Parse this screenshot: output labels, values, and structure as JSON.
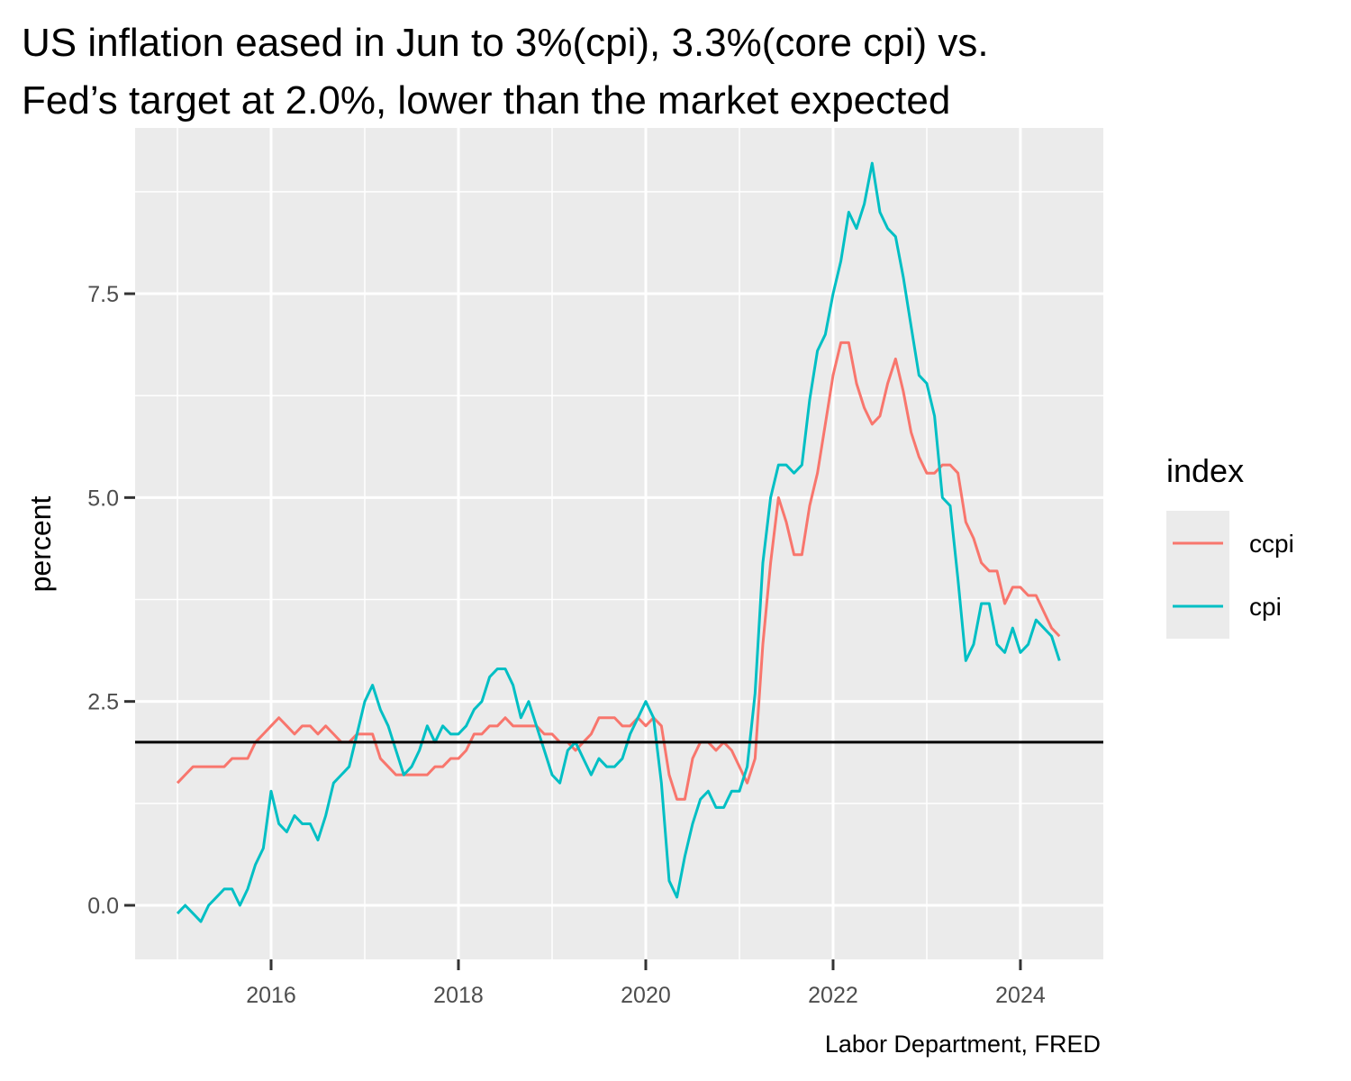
{
  "chart_data": {
    "type": "line",
    "title": [
      "US inflation eased in Jun to 3%(cpi), 3.3%(core cpi) vs.",
      "Fed’s target at 2.0%, lower than the market expected"
    ],
    "y_label": "percent",
    "caption": "Labor Department, FRED",
    "legend_title": "index",
    "legend": "right",
    "grid": true,
    "hline": 2,
    "hline_color": "#000000",
    "xlim": [
      2014.548,
      2024.885
    ],
    "xticks": [
      2016,
      2018,
      2020,
      2022,
      2024
    ],
    "xminor": [
      2015,
      2017,
      2019,
      2021,
      2023
    ],
    "ylim": [
      -0.663,
      9.533
    ],
    "yticks": [
      {
        "value": 0,
        "label": "0.0"
      },
      2.5,
      {
        "value": 5,
        "label": "5.0"
      },
      7.5
    ],
    "yminor": [
      1.25,
      3.75,
      6.25,
      8.75
    ],
    "x": [
      2015,
      2015.083,
      2015.167,
      2015.25,
      2015.333,
      2015.417,
      2015.5,
      2015.583,
      2015.667,
      2015.75,
      2015.833,
      2015.917,
      2016,
      2016.083,
      2016.167,
      2016.25,
      2016.333,
      2016.417,
      2016.5,
      2016.583,
      2016.667,
      2016.75,
      2016.833,
      2016.917,
      2017,
      2017.083,
      2017.167,
      2017.25,
      2017.333,
      2017.417,
      2017.5,
      2017.583,
      2017.667,
      2017.75,
      2017.833,
      2017.917,
      2018,
      2018.083,
      2018.167,
      2018.25,
      2018.333,
      2018.417,
      2018.5,
      2018.583,
      2018.667,
      2018.75,
      2018.833,
      2018.917,
      2019,
      2019.083,
      2019.167,
      2019.25,
      2019.333,
      2019.417,
      2019.5,
      2019.583,
      2019.667,
      2019.75,
      2019.833,
      2019.917,
      2020,
      2020.083,
      2020.167,
      2020.25,
      2020.333,
      2020.417,
      2020.5,
      2020.583,
      2020.667,
      2020.75,
      2020.833,
      2020.917,
      2021,
      2021.083,
      2021.167,
      2021.25,
      2021.333,
      2021.417,
      2021.5,
      2021.583,
      2021.667,
      2021.75,
      2021.833,
      2021.917,
      2022,
      2022.083,
      2022.167,
      2022.25,
      2022.333,
      2022.417,
      2022.5,
      2022.583,
      2022.667,
      2022.75,
      2022.833,
      2022.917,
      2023,
      2023.083,
      2023.167,
      2023.25,
      2023.333,
      2023.417,
      2023.5,
      2023.583,
      2023.667,
      2023.75,
      2023.833,
      2023.917,
      2024,
      2024.083,
      2024.167,
      2024.25,
      2024.333,
      2024.417
    ],
    "series": [
      {
        "name": "ccpi",
        "color": "#F8766D",
        "values": [
          1.5,
          1.6,
          1.7,
          1.7,
          1.7,
          1.7,
          1.7,
          1.8,
          1.8,
          1.8,
          2.0,
          2.1,
          2.2,
          2.3,
          2.2,
          2.1,
          2.2,
          2.2,
          2.1,
          2.2,
          2.1,
          2.0,
          2.0,
          2.1,
          2.1,
          2.1,
          1.8,
          1.7,
          1.6,
          1.6,
          1.6,
          1.6,
          1.6,
          1.7,
          1.7,
          1.8,
          1.8,
          1.9,
          2.1,
          2.1,
          2.2,
          2.2,
          2.3,
          2.2,
          2.2,
          2.2,
          2.2,
          2.1,
          2.1,
          2.0,
          2.0,
          1.9,
          2.0,
          2.1,
          2.3,
          2.3,
          2.3,
          2.2,
          2.2,
          2.3,
          2.2,
          2.3,
          2.2,
          1.6,
          1.3,
          1.3,
          1.8,
          2.0,
          2.0,
          1.9,
          2.0,
          1.9,
          1.7,
          1.5,
          1.8,
          3.2,
          4.2,
          5.0,
          4.7,
          4.3,
          4.3,
          4.9,
          5.3,
          5.9,
          6.5,
          6.9,
          6.9,
          6.4,
          6.1,
          5.9,
          6.0,
          6.4,
          6.7,
          6.3,
          5.8,
          5.5,
          5.3,
          5.3,
          5.4,
          5.4,
          5.3,
          4.7,
          4.5,
          4.2,
          4.1,
          4.1,
          3.7,
          3.9,
          3.9,
          3.8,
          3.8,
          3.6,
          3.4,
          3.3
        ]
      },
      {
        "name": "cpi",
        "color": "#00BFC4",
        "values": [
          -0.1,
          0.0,
          -0.1,
          -0.2,
          0.0,
          0.1,
          0.2,
          0.2,
          0.0,
          0.2,
          0.5,
          0.7,
          1.4,
          1.0,
          0.9,
          1.1,
          1.0,
          1.0,
          0.8,
          1.1,
          1.5,
          1.6,
          1.7,
          2.1,
          2.5,
          2.7,
          2.4,
          2.2,
          1.9,
          1.6,
          1.7,
          1.9,
          2.2,
          2.0,
          2.2,
          2.1,
          2.1,
          2.2,
          2.4,
          2.5,
          2.8,
          2.9,
          2.9,
          2.7,
          2.3,
          2.5,
          2.2,
          1.9,
          1.6,
          1.5,
          1.9,
          2.0,
          1.8,
          1.6,
          1.8,
          1.7,
          1.7,
          1.8,
          2.1,
          2.3,
          2.5,
          2.3,
          1.5,
          0.3,
          0.1,
          0.6,
          1.0,
          1.3,
          1.4,
          1.2,
          1.2,
          1.4,
          1.4,
          1.7,
          2.6,
          4.2,
          5.0,
          5.4,
          5.4,
          5.3,
          5.4,
          6.2,
          6.8,
          7.0,
          7.5,
          7.9,
          8.5,
          8.3,
          8.6,
          9.1,
          8.5,
          8.3,
          8.2,
          7.7,
          7.1,
          6.5,
          6.4,
          6.0,
          5.0,
          4.9,
          4.0,
          3.0,
          3.2,
          3.7,
          3.7,
          3.2,
          3.1,
          3.4,
          3.1,
          3.2,
          3.5,
          3.4,
          3.3,
          3.0
        ]
      }
    ]
  }
}
